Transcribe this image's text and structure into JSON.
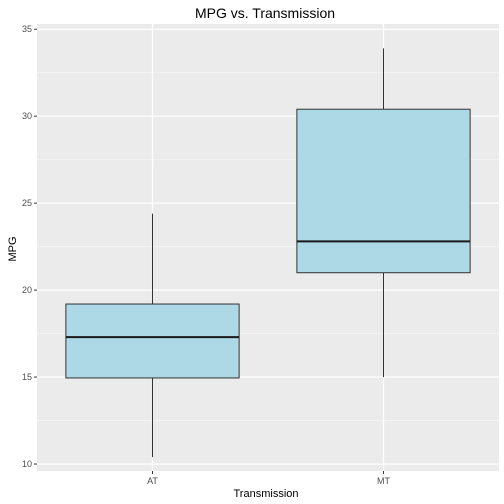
{
  "chart_data": {
    "type": "boxplot",
    "title": "MPG vs. Transmission",
    "xlabel": "Transmission",
    "ylabel": "MPG",
    "categories": [
      "AT",
      "MT"
    ],
    "boxes": [
      {
        "category": "AT",
        "min": 10.4,
        "q1": 14.95,
        "median": 17.3,
        "q3": 19.2,
        "max": 24.4
      },
      {
        "category": "MT",
        "min": 15.0,
        "q1": 21.0,
        "median": 22.8,
        "q3": 30.4,
        "max": 33.9
      }
    ],
    "ylim": [
      9.6,
      35.3
    ],
    "yticks": [
      10,
      15,
      20,
      25,
      30,
      35
    ],
    "grid": true,
    "legend": "none",
    "colors": {
      "panel_bg": "#ebebeb",
      "grid_major": "#ffffff",
      "grid_minor": "#f5f5f5",
      "box_fill": "#add8e6",
      "box_stroke": "#333333",
      "median": "#1a1a1a",
      "whisker": "#333333"
    }
  }
}
